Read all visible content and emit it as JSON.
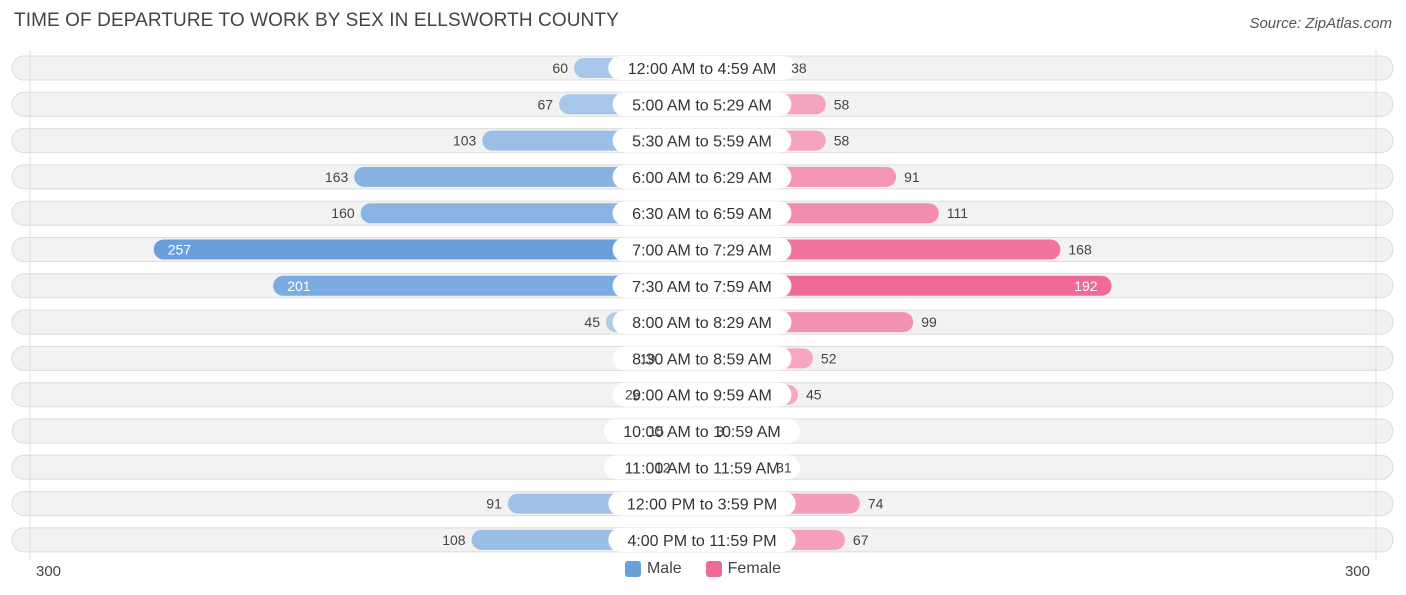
{
  "chart_data": {
    "type": "bar",
    "title": "TIME OF DEPARTURE TO WORK BY SEX IN ELLSWORTH COUNTY",
    "source": "Source: ZipAtlas.com",
    "categories": [
      "12:00 AM to 4:59 AM",
      "5:00 AM to 5:29 AM",
      "5:30 AM to 5:59 AM",
      "6:00 AM to 6:29 AM",
      "6:30 AM to 6:59 AM",
      "7:00 AM to 7:29 AM",
      "7:30 AM to 7:59 AM",
      "8:00 AM to 8:29 AM",
      "8:30 AM to 8:59 AM",
      "9:00 AM to 9:59 AM",
      "10:00 AM to 10:59 AM",
      "11:00 AM to 11:59 AM",
      "12:00 PM to 3:59 PM",
      "4:00 PM to 11:59 PM"
    ],
    "series": [
      {
        "name": "Male",
        "color": "#6a9fdb",
        "values": [
          60,
          67,
          103,
          163,
          160,
          257,
          201,
          45,
          19,
          26,
          15,
          12,
          91,
          108
        ]
      },
      {
        "name": "Female",
        "color": "#f06a96",
        "values": [
          38,
          58,
          58,
          91,
          111,
          168,
          192,
          99,
          52,
          45,
          3,
          31,
          74,
          67
        ]
      }
    ],
    "axis": {
      "min_label": "300",
      "max_label": "300",
      "max": 300
    },
    "legend": [
      "Male",
      "Female"
    ]
  }
}
